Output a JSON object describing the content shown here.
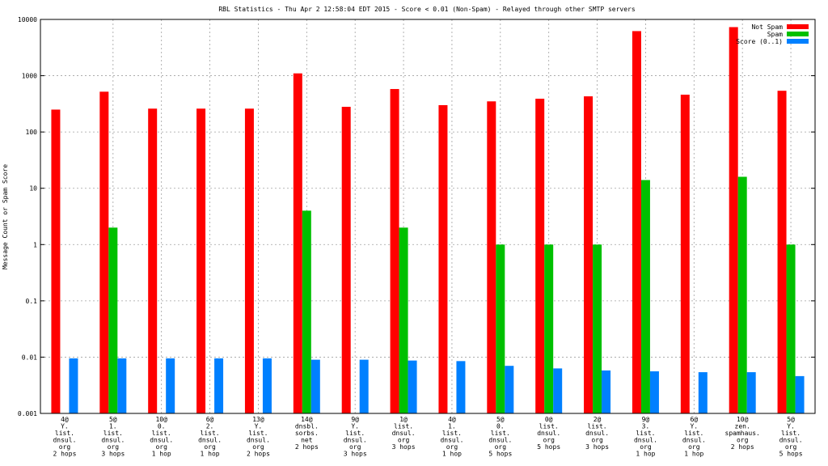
{
  "chart_data": {
    "type": "bar",
    "title": "RBL Statistics - Thu Apr  2 12:58:04 EDT 2015 - Score < 0.01 (Non-Spam) - Relayed through other SMTP servers",
    "ylabel": "Message Count or Spam Score",
    "xlabel": "",
    "yscale": "log",
    "ylim": [
      0.001,
      10000
    ],
    "yticks": [
      "0.001",
      "0.01",
      "0.1",
      "1",
      "10",
      "100",
      "1000",
      "10000"
    ],
    "grid": true,
    "legend_position": "top-right",
    "categories": [
      [
        "4@",
        "Y.",
        "list.",
        "dnsul.",
        "org",
        "2 hops"
      ],
      [
        "5@",
        "1.",
        "list.",
        "dnsul.",
        "org",
        "3 hops"
      ],
      [
        "10@",
        "0.",
        "list.",
        "dnsul.",
        "org",
        "1 hop"
      ],
      [
        "6@",
        "2.",
        "list.",
        "dnsul.",
        "org",
        "1 hop"
      ],
      [
        "13@",
        "Y.",
        "list.",
        "dnsul.",
        "org",
        "2 hops"
      ],
      [
        "14@",
        "dnsbl.",
        "sorbs.",
        "net",
        "2 hops"
      ],
      [
        "9@",
        "Y.",
        "list.",
        "dnsul.",
        "org",
        "3 hops"
      ],
      [
        "1@",
        "list.",
        "dnsul.",
        "org",
        "3 hops"
      ],
      [
        "4@",
        "1.",
        "list.",
        "dnsul.",
        "org",
        "1 hop"
      ],
      [
        "5@",
        "0.",
        "list.",
        "dnsul.",
        "org",
        "5 hops"
      ],
      [
        "0@",
        "list.",
        "dnsul.",
        "org",
        "5 hops"
      ],
      [
        "2@",
        "list.",
        "dnsul.",
        "org",
        "3 hops"
      ],
      [
        "9@",
        "3.",
        "list.",
        "dnsul.",
        "org",
        "1 hop"
      ],
      [
        "6@",
        "Y.",
        "list.",
        "dnsul.",
        "org",
        "1 hop"
      ],
      [
        "10@",
        "zen.",
        "spamhaus.",
        "org",
        "2 hops"
      ],
      [
        "5@",
        "Y.",
        "list.",
        "dnsul.",
        "org",
        "5 hops"
      ]
    ],
    "series": [
      {
        "name": "Not Spam",
        "color": "#ff0000",
        "values": [
          250,
          520,
          260,
          260,
          260,
          1100,
          280,
          580,
          300,
          350,
          390,
          430,
          6200,
          460,
          7300,
          540
        ]
      },
      {
        "name": "Spam",
        "color": "#00c000",
        "values": [
          null,
          2,
          null,
          null,
          null,
          4,
          null,
          2,
          null,
          1,
          1,
          1,
          14,
          null,
          16,
          1
        ]
      },
      {
        "name": "Score (0..1)",
        "color": "#0080ff",
        "values": [
          0.0095,
          0.0095,
          0.0095,
          0.0095,
          0.0095,
          0.009,
          0.009,
          0.0087,
          0.0085,
          0.007,
          0.0063,
          0.0058,
          0.0056,
          0.0054,
          0.0054,
          0.0046
        ]
      }
    ]
  }
}
